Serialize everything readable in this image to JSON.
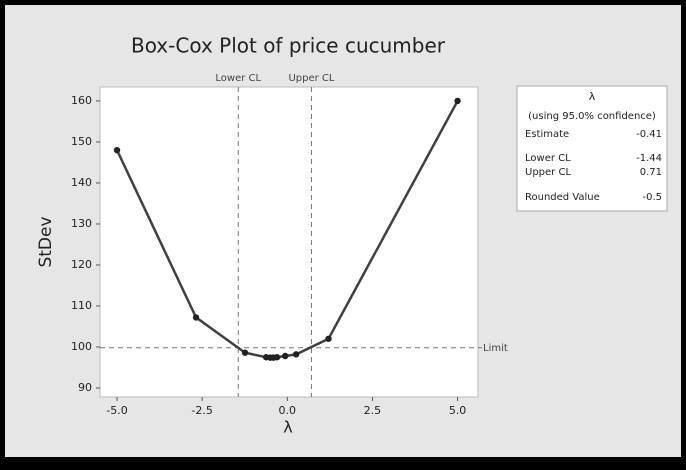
{
  "chart_data": {
    "type": "line",
    "title": "Box-Cox Plot of price cucumber",
    "y_label": "StDev",
    "x_label": "λ",
    "x": [
      -5,
      -2.68,
      -1.24,
      -0.62,
      -0.5,
      -0.41,
      -0.3,
      -0.06,
      0.26,
      1.21,
      5
    ],
    "values": [
      148,
      107.2,
      98.6,
      97.5,
      97.4,
      97.4,
      97.5,
      97.8,
      98.2,
      102,
      160
    ],
    "color": "#404040",
    "marker_color": "#222222",
    "xlim": [
      -5.5,
      5.6
    ],
    "ylim": [
      87.8,
      163.4
    ],
    "xticks": [
      {
        "value": -5,
        "label": "-5.0"
      },
      -2.5,
      {
        "value": 0,
        "label": "0.0"
      },
      2.5,
      {
        "value": 5,
        "label": "5.0"
      }
    ],
    "yticks": [
      90,
      100,
      110,
      120,
      130,
      140,
      150,
      160
    ],
    "reference_lines": [
      {
        "label": "Lower CL",
        "x": -1.44
      },
      {
        "label": "Upper CL",
        "x": 0.71
      },
      {
        "label": "Limit",
        "y": 99.8
      }
    ],
    "info_box": {
      "title": "λ",
      "subtitle": "(using 95.0% confidence)",
      "rows": [
        {
          "label": "Estimate",
          "value": -0.41
        },
        {
          "label": "Lower CL",
          "value": -1.44
        },
        {
          "label": "Upper CL",
          "value": 0.71
        },
        {
          "label": "Rounded Value",
          "value": -0.5
        }
      ]
    }
  }
}
